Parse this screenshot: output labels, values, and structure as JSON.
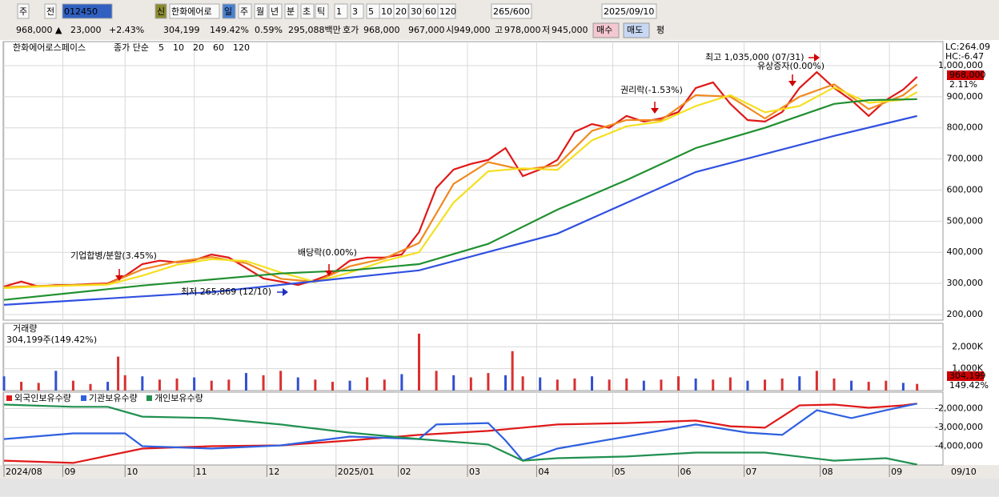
{
  "toolbar": {
    "row1": [
      {
        "text": "주"
      },
      {
        "text": "전"
      },
      {
        "text": "012450",
        "color": "#ffffff",
        "bg": "#3060c0"
      },
      {
        "text": "신",
        "color": "#ffffff",
        "bg": "#8a8a30"
      },
      {
        "text": "한화에어로"
      },
      {
        "text": "일",
        "color": "#ffffff",
        "bg": "#4a80d0"
      },
      {
        "text": "주"
      },
      {
        "text": "월"
      },
      {
        "text": "년"
      },
      {
        "text": "분"
      },
      {
        "text": "초"
      },
      {
        "text": "틱"
      },
      {
        "text": "1"
      },
      {
        "text": "3"
      },
      {
        "text": "5"
      },
      {
        "text": "10"
      },
      {
        "text": "20"
      },
      {
        "text": "30"
      },
      {
        "text": "60"
      },
      {
        "text": "120"
      },
      {
        "text": "265/600"
      },
      {
        "text": "2025/09/10"
      }
    ],
    "row2": [
      {
        "text": "968,000 ▲",
        "color": "#d00000"
      },
      {
        "text": "23,000",
        "color": "#d00000"
      },
      {
        "text": "+2.43%",
        "color": "#d00000"
      },
      {
        "text": "304,199"
      },
      {
        "text": "149.42%",
        "color": "#d00000"
      },
      {
        "text": "0.59%"
      },
      {
        "text": "295,088백만"
      },
      {
        "text": "호가"
      },
      {
        "text": "968,000",
        "color": "#d00000"
      },
      {
        "text": "967,000",
        "color": "#d00000"
      },
      {
        "text": "시"
      },
      {
        "text": "949,000",
        "color": "#d00000"
      },
      {
        "text": "고"
      },
      {
        "text": "978,000",
        "color": "#d00000"
      },
      {
        "text": "저"
      },
      {
        "text": "945,000",
        "color": "#d00000"
      },
      {
        "text": "매수",
        "bg": "#f4c8d0"
      },
      {
        "text": "매도",
        "bg": "#c8d8f4"
      },
      {
        "text": "평"
      }
    ]
  },
  "chart_data": [
    {
      "type": "line",
      "title": "한화에어로스페이스",
      "subtitle": "종가 단순",
      "grid": true,
      "xlim": [
        0,
        265
      ],
      "ylim": [
        182000,
        1077000
      ],
      "yticks": [
        {
          "value": 200000,
          "label": "200,000"
        },
        {
          "value": 300000,
          "label": "300,000"
        },
        {
          "value": 400000,
          "label": "400,000"
        },
        {
          "value": 500000,
          "label": "500,000"
        },
        {
          "value": 600000,
          "label": "600,000"
        },
        {
          "value": 700000,
          "label": "700,000"
        },
        {
          "value": 800000,
          "label": "800,000"
        },
        {
          "value": 900000,
          "label": "900,000"
        },
        {
          "value": 1000000,
          "label": "1,000,000"
        }
      ],
      "series": [
        {
          "name": "5",
          "color": "#e01818",
          "x": [
            0,
            5,
            10,
            15,
            20,
            25,
            30,
            35,
            40,
            45,
            50,
            55,
            60,
            65,
            70,
            75,
            80,
            85,
            90,
            95,
            100,
            105,
            110,
            115,
            120,
            125,
            130,
            135,
            140,
            145,
            150,
            155,
            160,
            165,
            170,
            175,
            180,
            185,
            190,
            195,
            200,
            205,
            210,
            215,
            220,
            225,
            230,
            235,
            240,
            245,
            250,
            255,
            260,
            264
          ],
          "values": [
            290000,
            306000,
            290000,
            295000,
            295000,
            298000,
            300000,
            324000,
            362000,
            373000,
            368000,
            375000,
            393000,
            383000,
            350000,
            316000,
            306000,
            295000,
            311000,
            332000,
            373000,
            383000,
            383000,
            393000,
            465000,
            607000,
            666000,
            684000,
            697000,
            735000,
            645000,
            666000,
            697000,
            787000,
            812000,
            800000,
            838000,
            820000,
            830000,
            851000,
            928000,
            946000,
            877000,
            825000,
            820000,
            851000,
            928000,
            979000,
            928000,
            889000,
            838000,
            889000,
            923000,
            964000
          ]
        },
        {
          "name": "10",
          "color": "#f08a20",
          "x": [
            0,
            10,
            20,
            30,
            40,
            50,
            60,
            70,
            80,
            90,
            100,
            110,
            120,
            130,
            140,
            150,
            160,
            170,
            180,
            190,
            200,
            210,
            220,
            230,
            240,
            250,
            260,
            264
          ],
          "values": [
            288000,
            292000,
            295000,
            298000,
            345000,
            370000,
            385000,
            365000,
            315000,
            305000,
            355000,
            380000,
            430000,
            620000,
            690000,
            665000,
            680000,
            790000,
            825000,
            825000,
            905000,
            900000,
            830000,
            900000,
            940000,
            860000,
            905000,
            940000
          ]
        },
        {
          "name": "20",
          "color": "#f4e020",
          "x": [
            0,
            10,
            20,
            30,
            40,
            50,
            60,
            70,
            80,
            90,
            100,
            110,
            120,
            130,
            140,
            150,
            160,
            170,
            180,
            190,
            200,
            210,
            220,
            230,
            240,
            250,
            260,
            264
          ],
          "values": [
            285000,
            290000,
            293000,
            296000,
            325000,
            360000,
            378000,
            372000,
            335000,
            305000,
            335000,
            372000,
            400000,
            560000,
            660000,
            670000,
            665000,
            760000,
            805000,
            820000,
            870000,
            905000,
            850000,
            870000,
            930000,
            880000,
            890000,
            915000
          ]
        },
        {
          "name": "60",
          "color": "#209030",
          "x": [
            0,
            40,
            80,
            100,
            120,
            140,
            160,
            180,
            200,
            220,
            240,
            250,
            264
          ],
          "values": [
            247000,
            293000,
            332000,
            342000,
            362000,
            427000,
            537000,
            632000,
            735000,
            800000,
            877000,
            889000,
            892000
          ]
        },
        {
          "name": "120",
          "color": "#3050e0",
          "x": [
            0,
            60,
            120,
            160,
            200,
            240,
            264
          ],
          "values": [
            231000,
            272000,
            342000,
            460000,
            658000,
            774000,
            838000
          ]
        }
      ],
      "annotations": [
        {
          "text": "기업합병/분할(3.45%)"
        },
        {
          "text": "배당락(0.00%)"
        },
        {
          "text": "권리락(-1.53%)"
        },
        {
          "text": "최고 1,035,000 (07/31)",
          "color": "#d00000"
        },
        {
          "text": "유상증자(0.00%)"
        },
        {
          "text": "최저 265,869 (12/10)",
          "color": "#2030c0"
        }
      ],
      "side_labels": {
        "lc": "LC:264.09",
        "hc": "HC:-6.47",
        "price": "968,000",
        "change": "2.11%"
      }
    },
    {
      "type": "bar",
      "title": "거래량",
      "subtitle": "304,199주(149.42%)",
      "color": "#d83030",
      "xlim": [
        0,
        265
      ],
      "ylim": [
        0,
        3070000
      ],
      "yticks": [
        {
          "value": 1000000,
          "label": "1,000K"
        },
        {
          "value": 2000000,
          "label": "2,000K"
        }
      ],
      "x": [
        0,
        5,
        10,
        15,
        20,
        25,
        30,
        33,
        35,
        40,
        45,
        50,
        55,
        60,
        65,
        70,
        75,
        80,
        85,
        90,
        95,
        100,
        105,
        110,
        115,
        120,
        125,
        130,
        135,
        140,
        145,
        147,
        150,
        155,
        160,
        165,
        170,
        175,
        180,
        185,
        190,
        195,
        200,
        205,
        210,
        215,
        220,
        225,
        230,
        235,
        240,
        245,
        250,
        255,
        260,
        264
      ],
      "values": [
        650000,
        400000,
        350000,
        900000,
        450000,
        300000,
        400000,
        1550000,
        700000,
        650000,
        500000,
        550000,
        600000,
        450000,
        500000,
        800000,
        700000,
        900000,
        600000,
        500000,
        400000,
        450000,
        600000,
        500000,
        750000,
        2600000,
        900000,
        700000,
        600000,
        800000,
        700000,
        1800000,
        650000,
        600000,
        500000,
        550000,
        650000,
        500000,
        550000,
        450000,
        500000,
        650000,
        550000,
        500000,
        600000,
        450000,
        500000,
        550000,
        650000,
        900000,
        550000,
        450000,
        400000,
        450000,
        350000,
        304199
      ],
      "last_labels": [
        "304,199",
        "149.42%"
      ]
    },
    {
      "type": "line",
      "xlim": [
        0,
        265
      ],
      "ylim": [
        -5000000,
        -1130000
      ],
      "yticks": [
        {
          "value": -2000000,
          "label": "-2,000,000"
        },
        {
          "value": -3000000,
          "label": "-3,000,000"
        },
        {
          "value": -4000000,
          "label": "-4,000,000"
        }
      ],
      "xticks": [
        {
          "value": 0,
          "label": "2024/08"
        },
        {
          "value": 17,
          "label": "09"
        },
        {
          "value": 35,
          "label": "10"
        },
        {
          "value": 55,
          "label": "11"
        },
        {
          "value": 76,
          "label": "12"
        },
        {
          "value": 96,
          "label": "2025/01"
        },
        {
          "value": 114,
          "label": "02"
        },
        {
          "value": 134,
          "label": "03"
        },
        {
          "value": 154,
          "label": "04"
        },
        {
          "value": 176,
          "label": "05"
        },
        {
          "value": 195,
          "label": "06"
        },
        {
          "value": 214,
          "label": "07"
        },
        {
          "value": 236,
          "label": "08"
        },
        {
          "value": 256,
          "label": "09"
        }
      ],
      "x_end_label": "09/10",
      "series": [
        {
          "name": "외국인보유수량",
          "color": "#e01818",
          "x": [
            0,
            20,
            40,
            60,
            80,
            100,
            120,
            140,
            160,
            180,
            200,
            210,
            220,
            225,
            230,
            240,
            250,
            260,
            264
          ],
          "values": [
            -4770000,
            -4890000,
            -4130000,
            -4000000,
            -3960000,
            -3700000,
            -3400000,
            -3190000,
            -2850000,
            -2770000,
            -2640000,
            -2940000,
            -3020000,
            -2430000,
            -1830000,
            -1790000,
            -1960000,
            -1830000,
            -1740000
          ]
        },
        {
          "name": "기관보유수량",
          "color": "#3060e0",
          "x": [
            0,
            20,
            35,
            40,
            60,
            80,
            100,
            120,
            125,
            140,
            145,
            150,
            160,
            180,
            200,
            215,
            225,
            235,
            245,
            255,
            264
          ],
          "values": [
            -3620000,
            -3320000,
            -3320000,
            -4000000,
            -4130000,
            -3960000,
            -3490000,
            -3620000,
            -2850000,
            -2770000,
            -3700000,
            -4770000,
            -4130000,
            -3490000,
            -2850000,
            -3280000,
            -3400000,
            -2090000,
            -2510000,
            -2090000,
            -1740000
          ]
        },
        {
          "name": "개인보유수량",
          "color": "#209050",
          "x": [
            0,
            20,
            30,
            40,
            60,
            80,
            100,
            120,
            140,
            150,
            160,
            180,
            200,
            220,
            240,
            255,
            264
          ],
          "values": [
            -1790000,
            -1910000,
            -1910000,
            -2430000,
            -2510000,
            -2850000,
            -3280000,
            -3620000,
            -3910000,
            -4770000,
            -4640000,
            -4550000,
            -4340000,
            -4340000,
            -4770000,
            -4640000,
            -4980000
          ]
        }
      ]
    }
  ]
}
